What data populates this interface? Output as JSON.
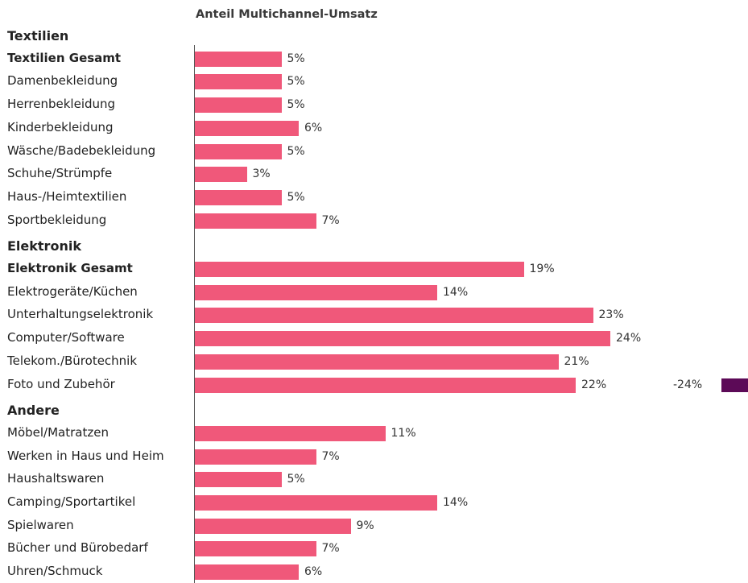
{
  "chart_data": {
    "type": "bar",
    "orientation": "horizontal",
    "title": "Anteil Multichannel-Umsatz",
    "xlabel": "",
    "ylabel": "",
    "unit": "%",
    "xlim": [
      0,
      25
    ],
    "grid": false,
    "bar_color": "#f0587a",
    "groups": [
      {
        "name": "Textilien",
        "items": [
          {
            "label": "Textilien Gesamt",
            "value": 5,
            "value_label": "5%",
            "total": true
          },
          {
            "label": "Damenbekleidung",
            "value": 5,
            "value_label": "5%"
          },
          {
            "label": "Herrenbekleidung",
            "value": 5,
            "value_label": "5%"
          },
          {
            "label": "Kinderbekleidung",
            "value": 6,
            "value_label": "6%"
          },
          {
            "label": "Wäsche/Badebekleidung",
            "value": 5,
            "value_label": "5%"
          },
          {
            "label": "Schuhe/Strümpfe",
            "value": 3,
            "value_label": "3%"
          },
          {
            "label": "Haus-/Heimtextilien",
            "value": 5,
            "value_label": "5%"
          },
          {
            "label": "Sportbekleidung",
            "value": 7,
            "value_label": "7%"
          }
        ]
      },
      {
        "name": "Elektronik",
        "items": [
          {
            "label": "Elektronik Gesamt",
            "value": 19,
            "value_label": "19%",
            "total": true
          },
          {
            "label": "Elektrogeräte/Küchen",
            "value": 14,
            "value_label": "14%"
          },
          {
            "label": "Unterhaltungselektronik",
            "value": 23,
            "value_label": "23%"
          },
          {
            "label": "Computer/Software",
            "value": 24,
            "value_label": "24%"
          },
          {
            "label": "Telekom./Bürotechnik",
            "value": 21,
            "value_label": "21%"
          },
          {
            "label": "Foto und Zubehör",
            "value": 22,
            "value_label": "22%",
            "extra_value": -24,
            "extra_label": "-24%",
            "extra_color": "#5c0a57"
          }
        ]
      },
      {
        "name": "Andere",
        "items": [
          {
            "label": "Möbel/Matratzen",
            "value": 11,
            "value_label": "11%"
          },
          {
            "label": "Werken in Haus und Heim",
            "value": 7,
            "value_label": "7%"
          },
          {
            "label": "Haushaltswaren",
            "value": 5,
            "value_label": "5%"
          },
          {
            "label": "Camping/Sportartikel",
            "value": 14,
            "value_label": "14%"
          },
          {
            "label": "Spielwaren",
            "value": 9,
            "value_label": "9%"
          },
          {
            "label": "Bücher und Bürobedarf",
            "value": 7,
            "value_label": "7%"
          },
          {
            "label": "Uhren/Schmuck",
            "value": 6,
            "value_label": "6%"
          }
        ]
      }
    ]
  }
}
